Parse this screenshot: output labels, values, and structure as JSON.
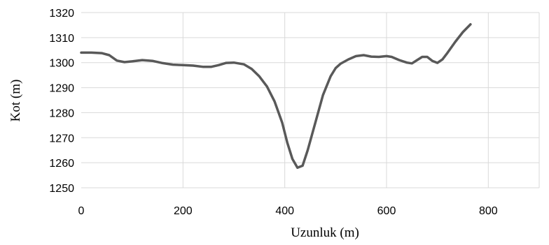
{
  "chart_data": {
    "type": "line",
    "title": "",
    "xlabel": "Uzunluk (m)",
    "ylabel": "Kot (m)",
    "xlim": [
      0,
      900
    ],
    "ylim": [
      1250,
      1320
    ],
    "xticks": [
      0,
      200,
      400,
      600,
      800
    ],
    "yticks": [
      1250,
      1260,
      1270,
      1280,
      1290,
      1300,
      1310,
      1320
    ],
    "grid": true,
    "legend": "none",
    "series_color": "#595959",
    "grid_color": "#d9d9d9",
    "series": [
      {
        "x": [
          0,
          20,
          40,
          55,
          70,
          85,
          100,
          120,
          140,
          160,
          180,
          200,
          220,
          240,
          255,
          270,
          285,
          300,
          320,
          335,
          350,
          365,
          380,
          395,
          405,
          415,
          425,
          435,
          445,
          460,
          475,
          490,
          500,
          510,
          525,
          540,
          555,
          570,
          585,
          600,
          610,
          625,
          640,
          650,
          660,
          670,
          680,
          690,
          700,
          710,
          720,
          735,
          750,
          765
        ],
        "y": [
          1304,
          1304,
          1303.8,
          1303,
          1300.8,
          1300.2,
          1300.5,
          1301,
          1300.7,
          1299.8,
          1299.2,
          1299,
          1298.8,
          1298.3,
          1298.3,
          1299,
          1299.9,
          1300,
          1299.3,
          1297.5,
          1294.5,
          1290.5,
          1284.5,
          1276,
          1268,
          1261.5,
          1258,
          1258.8,
          1265,
          1276,
          1287,
          1294.5,
          1297.8,
          1299.6,
          1301.3,
          1302.6,
          1303,
          1302.4,
          1302.3,
          1302.6,
          1302.3,
          1301,
          1300,
          1299.7,
          1301,
          1302.3,
          1302.3,
          1300.7,
          1299.9,
          1301.3,
          1304,
          1308.3,
          1312.2,
          1315.3
        ]
      }
    ]
  }
}
